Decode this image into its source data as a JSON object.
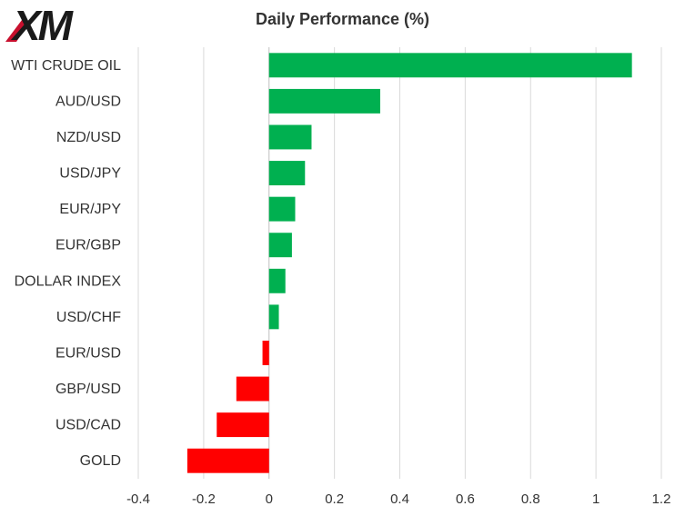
{
  "logo": {
    "text": "XM"
  },
  "chart_data": {
    "type": "bar",
    "orientation": "horizontal",
    "title": "Daily Performance (%)",
    "categories": [
      "WTI CRUDE OIL",
      "AUD/USD",
      "NZD/USD",
      "USD/JPY",
      "EUR/JPY",
      "EUR/GBP",
      "DOLLAR INDEX",
      "USD/CHF",
      "EUR/USD",
      "GBP/USD",
      "USD/CAD",
      "GOLD"
    ],
    "values": [
      1.11,
      0.34,
      0.13,
      0.11,
      0.08,
      0.07,
      0.05,
      0.03,
      -0.02,
      -0.1,
      -0.16,
      -0.25
    ],
    "xlim": [
      -0.4,
      1.2
    ],
    "x_ticks": [
      -0.4,
      -0.2,
      0,
      0.2,
      0.4,
      0.6,
      0.8,
      1,
      1.2
    ],
    "x_tick_labels": [
      "-0.4",
      "-0.2",
      "0",
      "0.2",
      "0.4",
      "0.6",
      "0.8",
      "1",
      "1.2"
    ],
    "grid": "vertical",
    "colors": {
      "positive": "#00b050",
      "negative": "#ff0000",
      "grid": "#d9d9d9",
      "axis": "#bfbfbf",
      "logo": "#1a1a1a",
      "logo_accent": "#c8102e"
    }
  }
}
